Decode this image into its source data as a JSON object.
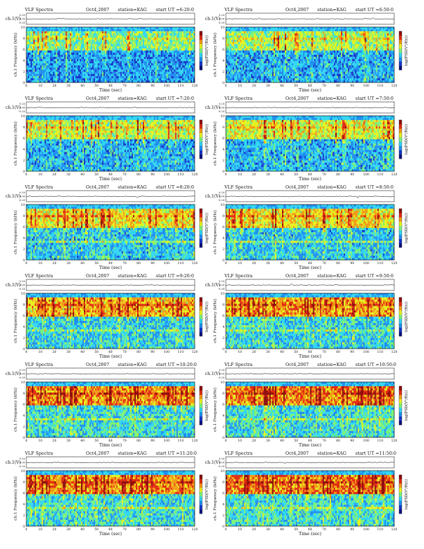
{
  "colors": {
    "scale": [
      "#0a0f7a",
      "#1535c8",
      "#1f8ef0",
      "#2fd6f2",
      "#7af27a",
      "#e6f21e",
      "#f29a14",
      "#e02a10",
      "#8c0a0a"
    ]
  },
  "chart_data": [
    {
      "type": "heatmap",
      "title": "VLF Spectra",
      "date": "Oct4,2007",
      "station": "station=KAG",
      "start": "start UT =6:20:0",
      "top_ylabel": "ch.1(V)",
      "top_ticks": [
        "0.20",
        "0.00",
        "-0.20"
      ],
      "ylabel": "ch.1 Frequency (kHz)",
      "colorbar_label": "log(PSD(V²/Hz))",
      "xlabel": "Time (sec)",
      "xticks": [
        "0",
        "10",
        "20",
        "30",
        "40",
        "50",
        "60",
        "70",
        "80",
        "90",
        "100",
        "110",
        "120"
      ],
      "yticks": [
        "0",
        "2",
        "4",
        "6",
        "8",
        "10"
      ],
      "xlim": [
        0,
        120
      ],
      "ylim": [
        0,
        10
      ],
      "intensity": 0.22
    },
    {
      "type": "heatmap",
      "title": "VLF Spectra",
      "date": "Oct4,2007",
      "station": "station=KAG",
      "start": "start UT =6:50:0",
      "top_ylabel": "ch.1(V)",
      "top_ticks": [
        "0.20",
        "0.00",
        "-0.20"
      ],
      "ylabel": "ch.1 Frequency (kHz)",
      "colorbar_label": "log(PSD(V²/Hz))",
      "xlabel": "Time (sec)",
      "xticks": [
        "0",
        "10",
        "20",
        "30",
        "40",
        "50",
        "60",
        "70",
        "80",
        "90",
        "100",
        "110",
        "120"
      ],
      "yticks": [
        "0",
        "2",
        "4",
        "6",
        "8",
        "10"
      ],
      "xlim": [
        0,
        120
      ],
      "ylim": [
        0,
        10
      ],
      "intensity": 0.32
    },
    {
      "type": "heatmap",
      "title": "VLF Spectra",
      "date": "Oct4,2007",
      "station": "station=KAG",
      "start": "start UT =7:20:0",
      "top_ylabel": "ch.1(V)",
      "top_ticks": [
        "0.20",
        "0.00",
        "-0.20"
      ],
      "ylabel": "ch.1 Frequency (kHz)",
      "colorbar_label": "log(PSD(V²/Hz))",
      "xlabel": "Time (sec)",
      "xticks": [
        "0",
        "10",
        "20",
        "30",
        "40",
        "50",
        "60",
        "70",
        "80",
        "90",
        "100",
        "110",
        "120"
      ],
      "yticks": [
        "0",
        "2",
        "4",
        "6",
        "8",
        "10"
      ],
      "xlim": [
        0,
        120
      ],
      "ylim": [
        0,
        10
      ],
      "intensity": 0.36
    },
    {
      "type": "heatmap",
      "title": "VLF Spectra",
      "date": "Oct4,2007",
      "station": "station=KAG",
      "start": "start UT =7:50:0",
      "top_ylabel": "ch.1(V)",
      "top_ticks": [
        "0.20",
        "0.00",
        "-0.20"
      ],
      "ylabel": "ch.1 Frequency (kHz)",
      "colorbar_label": "log(PSD(V²/Hz))",
      "xlabel": "Time (sec)",
      "xticks": [
        "0",
        "10",
        "20",
        "30",
        "40",
        "50",
        "60",
        "70",
        "80",
        "90",
        "100",
        "110",
        "120"
      ],
      "yticks": [
        "0",
        "2",
        "4",
        "6",
        "8",
        "10"
      ],
      "xlim": [
        0,
        120
      ],
      "ylim": [
        0,
        10
      ],
      "intensity": 0.4
    },
    {
      "type": "heatmap",
      "title": "VLF Spectra",
      "date": "Oct4,2007",
      "station": "station=KAG",
      "start": "start UT =8:20:0",
      "top_ylabel": "ch.1(V)",
      "top_ticks": [
        "0.20",
        "0.00",
        "-0.20"
      ],
      "ylabel": "ch.1 Frequency (kHz)",
      "colorbar_label": "log(PSD(V²/Hz))",
      "xlabel": "Time (sec)",
      "xticks": [
        "0",
        "10",
        "20",
        "30",
        "40",
        "50",
        "60",
        "70",
        "80",
        "90",
        "100",
        "110",
        "120"
      ],
      "yticks": [
        "0",
        "2",
        "4",
        "6",
        "8",
        "10"
      ],
      "xlim": [
        0,
        120
      ],
      "ylim": [
        0,
        10
      ],
      "intensity": 0.5
    },
    {
      "type": "heatmap",
      "title": "VLF Spectra",
      "date": "Oct4,2007",
      "station": "station=KAG",
      "start": "start UT =8:50:0",
      "top_ylabel": "ch.1(V)",
      "top_ticks": [
        "0.20",
        "0.00",
        "-0.20"
      ],
      "ylabel": "ch.1 Frequency (kHz)",
      "colorbar_label": "log(PSD(V²/Hz))",
      "xlabel": "Time (sec)",
      "xticks": [
        "0",
        "10",
        "20",
        "30",
        "40",
        "50",
        "60",
        "70",
        "80",
        "90",
        "100",
        "110",
        "120"
      ],
      "yticks": [
        "0",
        "2",
        "4",
        "6",
        "8",
        "10"
      ],
      "xlim": [
        0,
        120
      ],
      "ylim": [
        0,
        10
      ],
      "intensity": 0.52
    },
    {
      "type": "heatmap",
      "title": "VLF Spectra",
      "date": "Oct4,2007",
      "station": "station=KAG",
      "start": "start UT =9:20:0",
      "top_ylabel": "ch.1(V)",
      "top_ticks": [
        "0.20",
        "0.00",
        "-0.20"
      ],
      "ylabel": "ch.1 Frequency (kHz)",
      "colorbar_label": "log(PSD(V²/Hz))",
      "xlabel": "Time (sec)",
      "xticks": [
        "0",
        "10",
        "20",
        "30",
        "40",
        "50",
        "60",
        "70",
        "80",
        "90",
        "100",
        "110",
        "120"
      ],
      "yticks": [
        "0",
        "2",
        "4",
        "6",
        "8",
        "10"
      ],
      "xlim": [
        0,
        120
      ],
      "ylim": [
        0,
        10
      ],
      "intensity": 0.6
    },
    {
      "type": "heatmap",
      "title": "VLF Spectra",
      "date": "Oct4,2007",
      "station": "station=KAG",
      "start": "start UT =9:50:0",
      "top_ylabel": "ch.1(V)",
      "top_ticks": [
        "0.20",
        "0.00",
        "-0.20"
      ],
      "ylabel": "ch.1 Frequency (kHz)",
      "colorbar_label": "log(PSD(V²/Hz))",
      "xlabel": "Time (sec)",
      "xticks": [
        "0",
        "10",
        "20",
        "30",
        "40",
        "50",
        "60",
        "70",
        "80",
        "90",
        "100",
        "110",
        "120"
      ],
      "yticks": [
        "0",
        "2",
        "4",
        "6",
        "8",
        "10"
      ],
      "xlim": [
        0,
        120
      ],
      "ylim": [
        0,
        10
      ],
      "intensity": 0.64
    },
    {
      "type": "heatmap",
      "title": "VLF Spectra",
      "date": "Oct4,2007",
      "station": "station=KAG",
      "start": "start UT =10:20:0",
      "top_ylabel": "ch.1(V)",
      "top_ticks": [
        "0.20",
        "0.00",
        "-0.20"
      ],
      "ylabel": "ch.1 Frequency (kHz)",
      "colorbar_label": "log(PSD(V²/Hz))",
      "xlabel": "Time (sec)",
      "xticks": [
        "0",
        "10",
        "20",
        "30",
        "40",
        "50",
        "60",
        "70",
        "80",
        "90",
        "100",
        "110",
        "120"
      ],
      "yticks": [
        "0",
        "2",
        "4",
        "6",
        "8",
        "10"
      ],
      "xlim": [
        0,
        120
      ],
      "ylim": [
        0,
        10
      ],
      "intensity": 0.7
    },
    {
      "type": "heatmap",
      "title": "VLF Spectra",
      "date": "Oct4,2007",
      "station": "station=KAG",
      "start": "start UT =10:50:0",
      "top_ylabel": "ch.1(V)",
      "top_ticks": [
        "0.20",
        "0.00",
        "-0.20"
      ],
      "ylabel": "ch.1 Frequency (kHz)",
      "colorbar_label": "log(PSD(V²/Hz))",
      "xlabel": "Time (sec)",
      "xticks": [
        "0",
        "10",
        "20",
        "30",
        "40",
        "50",
        "60",
        "70",
        "80",
        "90",
        "100",
        "110",
        "120"
      ],
      "yticks": [
        "0",
        "2",
        "4",
        "6",
        "8",
        "10"
      ],
      "xlim": [
        0,
        120
      ],
      "ylim": [
        0,
        10
      ],
      "intensity": 0.74
    },
    {
      "type": "heatmap",
      "title": "VLF Spectra",
      "date": "Oct4,2007",
      "station": "station=KAG",
      "start": "start UT =11:20:0",
      "top_ylabel": "ch.1(V)",
      "top_ticks": [
        "0.20",
        "0.00",
        "-0.20"
      ],
      "ylabel": "ch.1 Frequency (kHz)",
      "colorbar_label": "log(PSD(V²/Hz))",
      "xlabel": "Time (sec)",
      "xticks": [
        "0",
        "10",
        "20",
        "30",
        "40",
        "50",
        "60",
        "70",
        "80",
        "90",
        "100",
        "110",
        "120"
      ],
      "yticks": [
        "0",
        "2",
        "4",
        "6",
        "8",
        "10"
      ],
      "xlim": [
        0,
        120
      ],
      "ylim": [
        0,
        10
      ],
      "intensity": 0.7
    },
    {
      "type": "heatmap",
      "title": "VLF Spectra",
      "date": "Oct4,2007",
      "station": "station=KAG",
      "start": "start UT =11:50:0",
      "top_ylabel": "ch.1(V)",
      "top_ticks": [
        "0.20",
        "0.00",
        "-0.20"
      ],
      "ylabel": "ch.1 Frequency (kHz)",
      "colorbar_label": "log(PSD(V²/Hz))",
      "xlabel": "Time (sec)",
      "xticks": [
        "0",
        "10",
        "20",
        "30",
        "40",
        "50",
        "60",
        "70",
        "80",
        "90",
        "100",
        "110",
        "120"
      ],
      "yticks": [
        "0",
        "2",
        "4",
        "6",
        "8",
        "10"
      ],
      "xlim": [
        0,
        120
      ],
      "ylim": [
        0,
        10
      ],
      "intensity": 0.74
    }
  ]
}
